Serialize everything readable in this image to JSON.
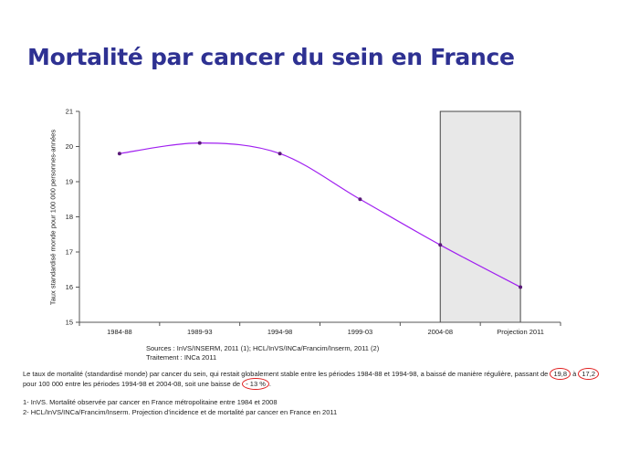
{
  "title": "Mortalité par cancer du sein en France",
  "chart_data": {
    "type": "line",
    "categories": [
      "1984-88",
      "1989-93",
      "1994-98",
      "1999-03",
      "2004-08",
      "Projection 2011"
    ],
    "values": [
      19.8,
      20.1,
      19.8,
      18.5,
      17.2,
      16.0
    ],
    "ylabel": "Taux standardisé monde pour 100 000 personnes-années",
    "xlabel": "",
    "ylim": [
      15,
      21
    ],
    "yticks": [
      15,
      16,
      17,
      18,
      19,
      20,
      21
    ],
    "grid": false,
    "shaded_region": [
      "2004-08",
      "Projection 2011"
    ],
    "line_color": "#a020f0",
    "marker_color": "#5a1a78",
    "shade_color": "#e8e8e8"
  },
  "sources": {
    "line1": "Sources : InVS/INSERM, 2011 (1); HCL/InVS/INCa/Francim/Inserm, 2011 (2)",
    "line2": "Traitement : INCa 2011"
  },
  "description": {
    "part1": "Le taux de mortalité (standardisé monde) par cancer du sein, qui restait globalement stable entre les périodes 1984-88 et 1994-98, a baissé de manière régulière, passant de ",
    "value_start": "19,8",
    "part2": " à ",
    "value_end": "17,2",
    "part3": " pour 100 000 entre les périodes 1994-98 et 2004-08, soit une baisse de ",
    "decline": "- 13 %",
    "part4": "."
  },
  "notes": [
    "1- InVS. Mortalité observée par cancer en France métropolitaine entre 1984 et 2008",
    "2- HCL/InVS/INCa/Francim/Inserm. Projection d’incidence et de mortalité par cancer en France en 2011"
  ]
}
